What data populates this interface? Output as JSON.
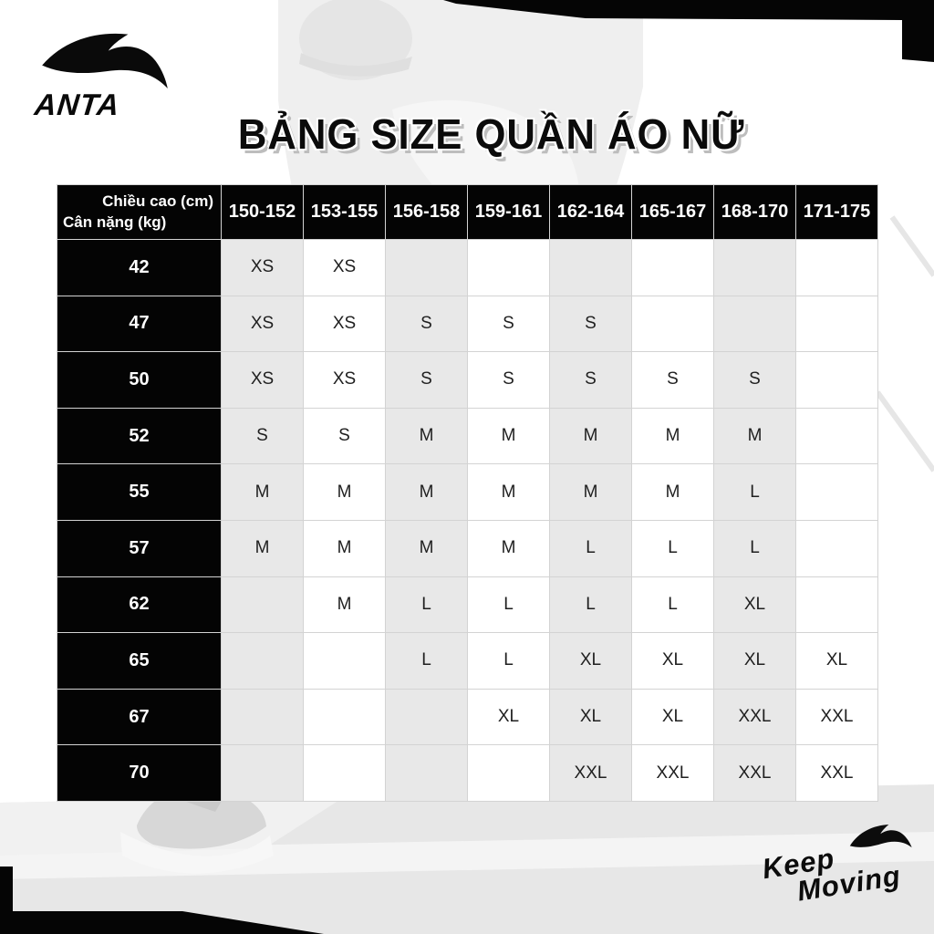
{
  "brand": {
    "logo_text": "ANTA",
    "tagline_line1": "Keep",
    "tagline_line2": "Moving"
  },
  "title": "BẢNG SIZE QUẦN ÁO NỮ",
  "table": {
    "corner_header": {
      "line1": "Chiều cao (cm)",
      "line2": "Cân nặng (kg)"
    },
    "height_columns": [
      "150-152",
      "153-155",
      "156-158",
      "159-161",
      "162-164",
      "165-167",
      "168-170",
      "171-175"
    ],
    "rows": [
      {
        "weight": "42",
        "sizes": [
          "XS",
          "XS",
          "",
          "",
          "",
          "",
          "",
          ""
        ]
      },
      {
        "weight": "47",
        "sizes": [
          "XS",
          "XS",
          "S",
          "S",
          "S",
          "",
          "",
          ""
        ]
      },
      {
        "weight": "50",
        "sizes": [
          "XS",
          "XS",
          "S",
          "S",
          "S",
          "S",
          "S",
          ""
        ]
      },
      {
        "weight": "52",
        "sizes": [
          "S",
          "S",
          "M",
          "M",
          "M",
          "M",
          "M",
          ""
        ]
      },
      {
        "weight": "55",
        "sizes": [
          "M",
          "M",
          "M",
          "M",
          "M",
          "M",
          "L",
          ""
        ]
      },
      {
        "weight": "57",
        "sizes": [
          "M",
          "M",
          "M",
          "M",
          "L",
          "L",
          "L",
          ""
        ]
      },
      {
        "weight": "62",
        "sizes": [
          "",
          "M",
          "L",
          "L",
          "L",
          "L",
          "XL",
          ""
        ]
      },
      {
        "weight": "65",
        "sizes": [
          "",
          "",
          "L",
          "L",
          "XL",
          "XL",
          "XL",
          "XL"
        ]
      },
      {
        "weight": "67",
        "sizes": [
          "",
          "",
          "",
          "XL",
          "XL",
          "XL",
          "XXL",
          "XXL"
        ]
      },
      {
        "weight": "70",
        "sizes": [
          "",
          "",
          "",
          "",
          "XXL",
          "XXL",
          "XXL",
          "XXL"
        ]
      }
    ]
  },
  "colors": {
    "accent_black": "#040404",
    "shaded_column": "#e8e8e8",
    "cell_border": "#d3d3d3",
    "title_shadow": "#bdbdbd"
  }
}
